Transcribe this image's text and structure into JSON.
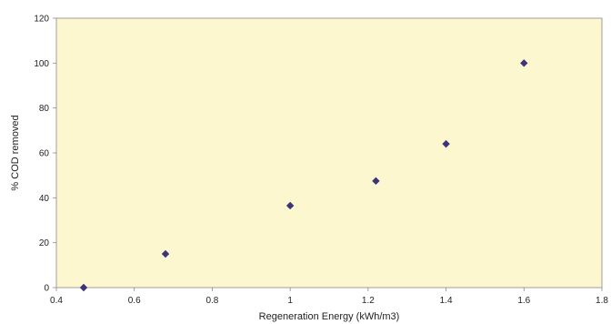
{
  "chart_data": {
    "type": "scatter",
    "xlabel": "Regeneration Energy (kWh/m3)",
    "ylabel": "% COD removed",
    "xlim": [
      0.4,
      1.8
    ],
    "ylim": [
      0,
      120
    ],
    "xticks": [
      "0.4",
      "0.6",
      "0.8",
      "1",
      "1.2",
      "1.4",
      "1.6",
      "1.8"
    ],
    "yticks": [
      "0",
      "20",
      "40",
      "60",
      "80",
      "100",
      "120"
    ],
    "grid": false,
    "series": [
      {
        "marker": "diamond",
        "color": "#3b3478",
        "points": [
          {
            "x": 0.47,
            "y": 0
          },
          {
            "x": 0.68,
            "y": 15
          },
          {
            "x": 1.0,
            "y": 36.5
          },
          {
            "x": 1.22,
            "y": 47.5
          },
          {
            "x": 1.4,
            "y": 64
          },
          {
            "x": 1.6,
            "y": 100
          }
        ]
      }
    ],
    "plot_background": "#fdf7cf"
  }
}
